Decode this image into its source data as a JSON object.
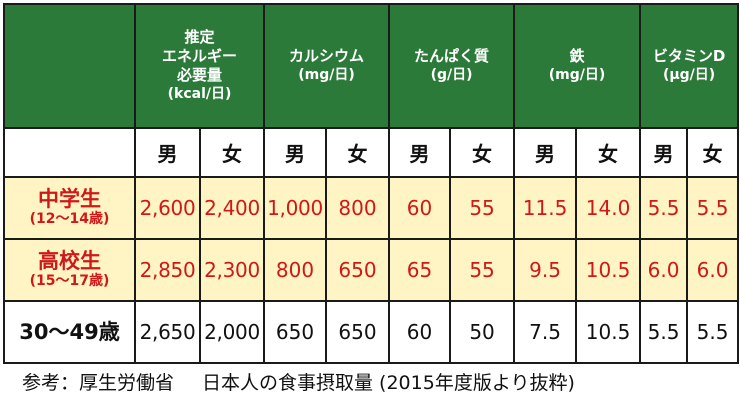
{
  "header": {
    "corner": "",
    "energy": [
      "推定",
      "エネルギー",
      "必要量",
      "(kcal/日)"
    ],
    "calcium": [
      "カルシウム",
      "(mg/日)"
    ],
    "protein": [
      "たんぱく質",
      "(g/日)"
    ],
    "iron": [
      "鉄",
      "(mg/日)"
    ],
    "vitamin_d": [
      "ビタミンD",
      "(μg/日)"
    ]
  },
  "sex": {
    "male": "男",
    "female": "女"
  },
  "rows": [
    {
      "label": "中学生",
      "sub": "(12〜14歳)",
      "values": [
        "2,600",
        "2,400",
        "1,000",
        "800",
        "60",
        "55",
        "11.5",
        "14.0",
        "5.5",
        "5.5"
      ]
    },
    {
      "label": "高校生",
      "sub": "(15〜17歳)",
      "values": [
        "2,850",
        "2,300",
        "800",
        "650",
        "65",
        "55",
        "9.5",
        "10.5",
        "6.0",
        "6.0"
      ]
    },
    {
      "label": "30〜49歳",
      "sub": "",
      "values": [
        "2,650",
        "2,000",
        "650",
        "650",
        "60",
        "50",
        "7.5",
        "10.5",
        "5.5",
        "5.5"
      ]
    }
  ],
  "footnote": {
    "reference": "参考：厚生労働省",
    "source": "日本人の食事摂取量 (2015年度版より抜粋)"
  },
  "colors": {
    "header_green": "#2c7a3a",
    "highlight_row": "#fff4c4",
    "highlight_text": "#d01818"
  }
}
